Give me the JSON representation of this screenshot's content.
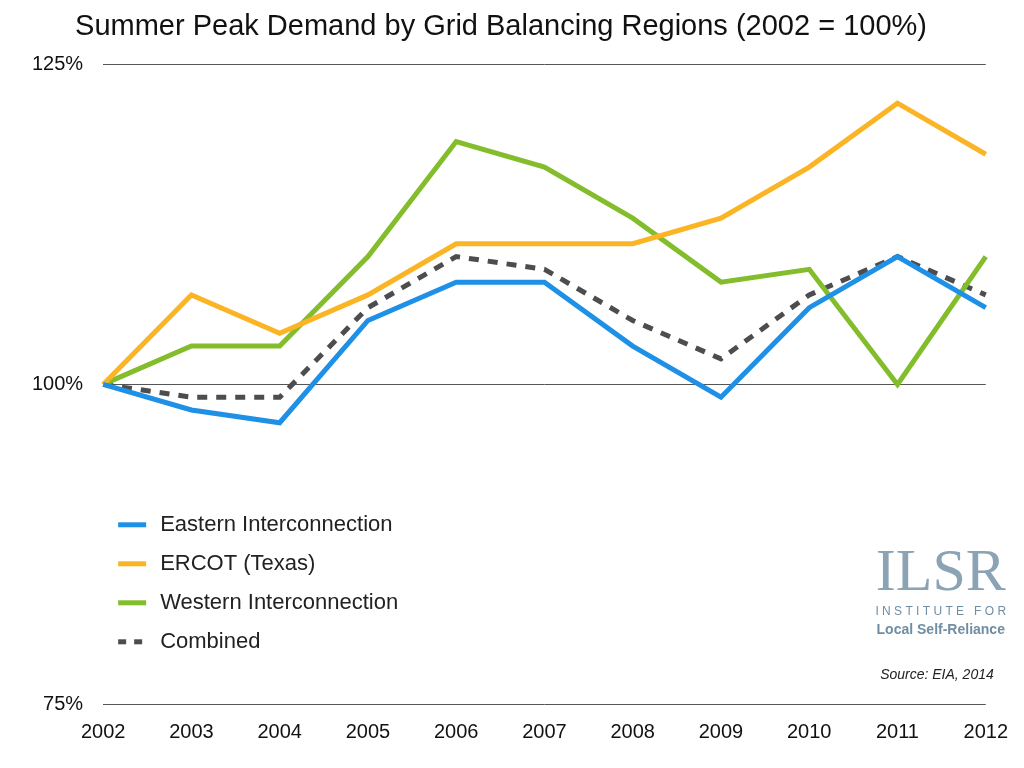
{
  "chart_data": {
    "type": "line",
    "title": "Summer Peak Demand by Grid Balancing Regions (2002 = 100%)",
    "categories": [
      "2002",
      "2003",
      "2004",
      "2005",
      "2006",
      "2007",
      "2008",
      "2009",
      "2010",
      "2011",
      "2012"
    ],
    "series": [
      {
        "name": "Eastern Interconnection",
        "color": "#1e90e6",
        "line_style": "solid",
        "marker": "none",
        "values": [
          100,
          98,
          97,
          105,
          108,
          108,
          103,
          99,
          106,
          110,
          106
        ]
      },
      {
        "name": "ERCOT (Texas)",
        "color": "#fbb424",
        "line_style": "solid",
        "marker": "none",
        "values": [
          100,
          107,
          104,
          107,
          111,
          111,
          111,
          113,
          117,
          122,
          118
        ]
      },
      {
        "name": "Western Interconnection",
        "color": "#84bd2b",
        "line_style": "solid",
        "marker": "none",
        "values": [
          100,
          103,
          103,
          110,
          119,
          117,
          113,
          108,
          109,
          100,
          110
        ]
      },
      {
        "name": "Combined",
        "color": "#4d4d4f",
        "line_style": "dashed",
        "marker": "none",
        "values": [
          100,
          99,
          99,
          106,
          110,
          109,
          105,
          102,
          107,
          110,
          107
        ]
      }
    ],
    "ylim": [
      75,
      125
    ],
    "yticks": [
      {
        "value": 75,
        "label": "75%"
      },
      {
        "value": 100,
        "label": "100%"
      },
      {
        "value": 125,
        "label": "125%"
      }
    ],
    "grid": true,
    "legend": "lower left",
    "annotations": {
      "source": "Source: EIA, 2014",
      "logo": [
        "ILSR",
        "INSTITUTE FOR",
        "Local Self-Reliance"
      ]
    }
  }
}
